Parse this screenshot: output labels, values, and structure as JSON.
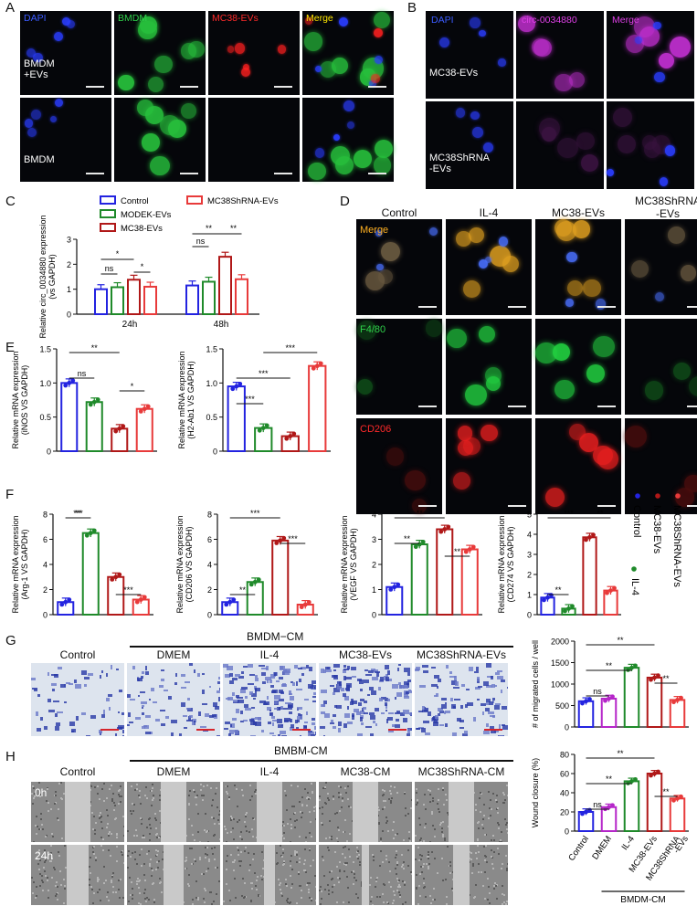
{
  "panelA": {
    "label": "A",
    "channels": [
      "DAPI",
      "BMDM",
      "MC38-EVs",
      "Merge"
    ],
    "rows": [
      "BMDM\n+EVs",
      "BMDM"
    ],
    "colors": {
      "DAPI": "#3b5bff",
      "BMDM": "#2fd04a",
      "EVs": "#ff2a2a",
      "Merge": "#ffe600"
    }
  },
  "panelB": {
    "label": "B",
    "channels": [
      "DAPI",
      "circ-0034880",
      "Merge"
    ],
    "rows": [
      "MC38-EVs",
      "MC38ShRNA\n-EVs"
    ],
    "colors": {
      "DAPI": "#3b5bff",
      "circ": "#e040e8",
      "Merge": "#e040e8"
    }
  },
  "panelC": {
    "label": "C",
    "legend": [
      "Control",
      "MODEK-EVs",
      "MC38-EVs",
      "MC38ShRNA-EVs"
    ]
  },
  "panelD": {
    "label": "D",
    "columns": [
      "Control",
      "IL-4",
      "MC38-EVs",
      "MC38ShRNA\n-EVs"
    ],
    "rows": [
      "Merge",
      "F4/80",
      "CD206"
    ],
    "rowColors": [
      "#ffb020",
      "#2fd04a",
      "#ff2a2a"
    ]
  },
  "panelE": {
    "label": "E"
  },
  "panelF": {
    "label": "F",
    "legend": [
      "Control",
      "MC38-EVs",
      "MC38ShRNA-EVs",
      "IL-4"
    ]
  },
  "panelG": {
    "label": "G",
    "header": "BMDM−CM",
    "columns": [
      "Control",
      "DMEM",
      "IL-4",
      "MC38-EVs",
      "MC38ShRNA-EVs"
    ]
  },
  "panelH": {
    "label": "H",
    "header": "BMBM-CM",
    "columns": [
      "Control",
      "DMEM",
      "IL-4",
      "MC38-CM",
      "MC38ShRNA-CM"
    ],
    "rows": [
      "0h",
      "24h"
    ],
    "bottomBracket": "BMDM-CM"
  },
  "chart_data": [
    {
      "id": "C",
      "type": "bar",
      "ylabel": "Relative circ_0034880 expression\n(vs GAPDH)",
      "categories": [
        "24h",
        "48h"
      ],
      "ylim": [
        0,
        3
      ],
      "yticks": [
        0,
        1,
        2,
        3
      ],
      "series": [
        {
          "name": "Control",
          "values": [
            1.0,
            1.15
          ]
        },
        {
          "name": "MODEK-EVs",
          "values": [
            1.08,
            1.3
          ]
        },
        {
          "name": "MC38-EVs",
          "values": [
            1.38,
            2.3
          ]
        },
        {
          "name": "MC38ShRNA-EVs",
          "values": [
            1.1,
            1.4
          ]
        }
      ],
      "significance": [
        "ns",
        "*",
        "*",
        "ns",
        "**",
        "**"
      ]
    },
    {
      "id": "E1",
      "type": "bar",
      "ylabel": "Relative mRNA expression\n(iNOS  VS GAPDH)",
      "ylim": [
        0,
        1.5
      ],
      "yticks": [
        0,
        0.5,
        1.0,
        1.5
      ],
      "values": [
        1.0,
        0.72,
        0.33,
        0.62
      ],
      "significance": [
        "**",
        "ns",
        "*"
      ]
    },
    {
      "id": "E2",
      "type": "bar",
      "ylabel": "Relative mRNA expression\n(H2-Ab1 VS GAPDH)",
      "ylim": [
        0,
        1.5
      ],
      "yticks": [
        0,
        0.5,
        1.0,
        1.5
      ],
      "values": [
        0.95,
        0.34,
        0.22,
        1.25
      ],
      "significance": [
        "***",
        "***",
        "***"
      ]
    },
    {
      "id": "F1",
      "type": "bar",
      "ylabel": "Relative mRNA expression\n(Arg-1 VS GAPDH)",
      "ylim": [
        0,
        8
      ],
      "yticks": [
        0,
        2,
        4,
        6,
        8
      ],
      "values": [
        1.0,
        6.5,
        3.0,
        1.2
      ],
      "significance": [
        "***",
        "**",
        "***"
      ]
    },
    {
      "id": "F2",
      "type": "bar",
      "ylabel": "Relative mRNA expression\n(CD206 VS GAPDH)",
      "ylim": [
        0,
        8
      ],
      "yticks": [
        0,
        2,
        4,
        6,
        8
      ],
      "values": [
        1.0,
        2.6,
        5.9,
        0.8
      ],
      "significance": [
        "**",
        "***",
        "***"
      ]
    },
    {
      "id": "F3",
      "type": "bar",
      "ylabel": "Relative mRNA expression\n(VEGF VS GAPDH)",
      "ylim": [
        0,
        4
      ],
      "yticks": [
        0,
        1,
        2,
        3,
        4
      ],
      "values": [
        1.1,
        2.8,
        3.4,
        2.6
      ],
      "significance": [
        "**",
        "**",
        "**"
      ]
    },
    {
      "id": "F4",
      "type": "bar",
      "ylabel": "Relative mRNA expression\n(CD274 VS GAPDH)",
      "ylim": [
        0,
        5
      ],
      "yticks": [
        0,
        1,
        2,
        3,
        4,
        5
      ],
      "values": [
        0.85,
        0.3,
        3.85,
        1.2
      ],
      "significance": [
        "**",
        "***",
        "**"
      ]
    },
    {
      "id": "G",
      "type": "bar",
      "ylabel": "# of migrated cells / well",
      "ylim": [
        0,
        2000
      ],
      "yticks": [
        0,
        500,
        1000,
        1500,
        2000
      ],
      "values": [
        600,
        660,
        1380,
        1150,
        630
      ],
      "significance": [
        "ns",
        "**",
        "**",
        "**"
      ]
    },
    {
      "id": "H",
      "type": "bar",
      "ylabel": "Wound closure (%)",
      "categories": [
        "Control",
        "DMEM",
        "IL-4",
        "MC38-EVs",
        "MC38ShRNA\n-EVs"
      ],
      "ylim": [
        0,
        80
      ],
      "yticks": [
        0,
        20,
        40,
        60,
        80
      ],
      "values": [
        20,
        25,
        52,
        60,
        34
      ],
      "significance": [
        "ns",
        "**",
        "**",
        "**"
      ]
    }
  ],
  "palette": {
    "control": "#2323e0",
    "modek": "#1f8a2a",
    "mc38": "#b01818",
    "shrna": "#e83a3a",
    "dmem": "#b526c9"
  }
}
